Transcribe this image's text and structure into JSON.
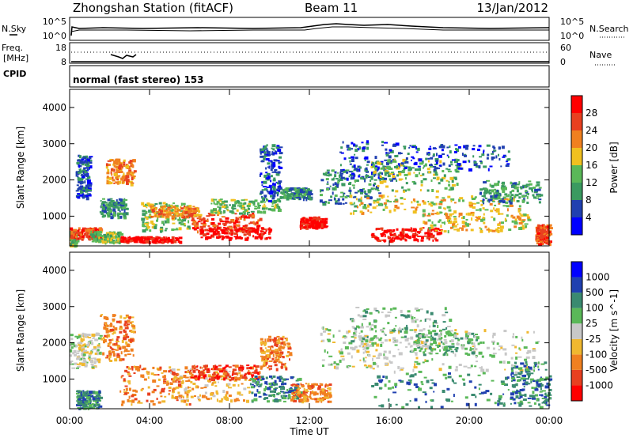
{
  "header": {
    "station": "Zhongshan Station (fitACF)",
    "beam": "Beam 11",
    "date": "13/Jan/2012"
  },
  "strip_panels": {
    "noise": {
      "left_label": "N.Sky",
      "right_label": "N.Search",
      "left_ticks": [
        "10^5",
        "10^0"
      ],
      "right_ticks": [
        "10^5",
        "10^0"
      ]
    },
    "freq": {
      "left_label_line1": "Freq.",
      "left_label_line2": "[MHz]",
      "right_label": "Nave",
      "left_ticks": [
        "18",
        "8"
      ],
      "right_ticks": [
        "60",
        "0"
      ]
    },
    "cpid": {
      "label": "CPID",
      "text": "normal (fast stereo) 153"
    }
  },
  "chart_data": [
    {
      "type": "heatmap",
      "title": "Power",
      "ylabel": "Slant Range [km]",
      "xlabel": "Time UT",
      "x_ticks": [
        "00:00",
        "04:00",
        "08:00",
        "12:00",
        "16:00",
        "20:00",
        "00:00"
      ],
      "xlim": [
        0,
        24
      ],
      "y_ticks": [
        1000,
        2000,
        3000,
        4000
      ],
      "ylim": [
        180,
        4500
      ],
      "colorbar": {
        "label": "Power [dB]",
        "tick_values": [
          4,
          8,
          12,
          16,
          20,
          24,
          28
        ],
        "range": [
          0,
          32
        ],
        "colors": [
          "#0000ff",
          "#2040b0",
          "#3a9a60",
          "#5ab858",
          "#f0c020",
          "#f08020",
          "#e84020",
          "#ff0000"
        ]
      },
      "regions": [
        {
          "t": [
            0.0,
            0.3
          ],
          "r": [
            180,
            600
          ],
          "level": 3
        },
        {
          "t": [
            0.0,
            1.5
          ],
          "r": [
            400,
            700
          ],
          "level": 6
        },
        {
          "t": [
            0.3,
            1.0
          ],
          "r": [
            1500,
            2700
          ],
          "level": 1
        },
        {
          "t": [
            1.5,
            2.8
          ],
          "r": [
            1000,
            1500
          ],
          "level": 2
        },
        {
          "t": [
            1.8,
            3.2
          ],
          "r": [
            1900,
            2600
          ],
          "level": 5
        },
        {
          "t": [
            1.0,
            2.5
          ],
          "r": [
            300,
            600
          ],
          "level": 3
        },
        {
          "t": [
            2.5,
            5.5
          ],
          "r": [
            300,
            450
          ],
          "level": 7
        },
        {
          "t": [
            3.5,
            6.0
          ],
          "r": [
            600,
            1400
          ],
          "level": 3
        },
        {
          "t": [
            4.0,
            6.5
          ],
          "r": [
            1000,
            1300
          ],
          "level": 5
        },
        {
          "t": [
            6.0,
            9.5
          ],
          "r": [
            600,
            1100
          ],
          "level": 6
        },
        {
          "t": [
            6.5,
            10.0
          ],
          "r": [
            400,
            700
          ],
          "level": 7
        },
        {
          "t": [
            7.0,
            10.5
          ],
          "r": [
            1100,
            1500
          ],
          "level": 3
        },
        {
          "t": [
            9.5,
            10.5
          ],
          "r": [
            1400,
            3000
          ],
          "level": 1
        },
        {
          "t": [
            10.5,
            12.0
          ],
          "r": [
            1500,
            1800
          ],
          "level": 2
        },
        {
          "t": [
            11.5,
            12.8
          ],
          "r": [
            700,
            1000
          ],
          "level": 7
        },
        {
          "t": [
            12.5,
            15.5
          ],
          "r": [
            1300,
            2300
          ],
          "level": 2
        },
        {
          "t": [
            13.5,
            16.5
          ],
          "r": [
            2000,
            3100
          ],
          "level": 1
        },
        {
          "t": [
            14.0,
            22.5
          ],
          "r": [
            1100,
            1600
          ],
          "level": 4
        },
        {
          "t": [
            15.0,
            19.5
          ],
          "r": [
            1700,
            2600
          ],
          "level": 3
        },
        {
          "t": [
            16.5,
            22.0
          ],
          "r": [
            2300,
            3000
          ],
          "level": 1
        },
        {
          "t": [
            15.0,
            18.5
          ],
          "r": [
            350,
            700
          ],
          "level": 7
        },
        {
          "t": [
            17.5,
            23.0
          ],
          "r": [
            600,
            1100
          ],
          "level": 4
        },
        {
          "t": [
            20.5,
            23.5
          ],
          "r": [
            1400,
            2000
          ],
          "level": 2
        },
        {
          "t": [
            23.3,
            24.0
          ],
          "r": [
            250,
            800
          ],
          "level": 6
        }
      ]
    },
    {
      "type": "heatmap",
      "title": "Velocity",
      "ylabel": "Slant Range [km]",
      "xlabel": "Time UT",
      "x_ticks": [
        "00:00",
        "04:00",
        "08:00",
        "12:00",
        "16:00",
        "20:00",
        "00:00"
      ],
      "xlim": [
        0,
        24
      ],
      "y_ticks": [
        1000,
        2000,
        3000,
        4000
      ],
      "ylim": [
        180,
        4500
      ],
      "colorbar": {
        "label": "Velocity [m s^-1]",
        "tick_labels": [
          "-1000",
          "-500",
          "-100",
          "-25",
          "25",
          "100",
          "500",
          "1000"
        ],
        "colors": [
          "#ff0000",
          "#e84020",
          "#f08020",
          "#f0b830",
          "#c8c8c8",
          "#5ab858",
          "#3a8a70",
          "#2040b0",
          "#0000ff"
        ]
      },
      "regions": [
        {
          "t": [
            0.0,
            1.5
          ],
          "r": [
            1300,
            2300
          ],
          "level": 4
        },
        {
          "t": [
            0.3,
            1.5
          ],
          "r": [
            200,
            700
          ],
          "level": 6
        },
        {
          "t": [
            1.5,
            3.2
          ],
          "r": [
            1500,
            2800
          ],
          "level": 2
        },
        {
          "t": [
            2.5,
            6.0
          ],
          "r": [
            300,
            1400
          ],
          "level": 2
        },
        {
          "t": [
            5.0,
            9.0
          ],
          "r": [
            400,
            1300
          ],
          "level": 3
        },
        {
          "t": [
            6.0,
            9.5
          ],
          "r": [
            1000,
            1400
          ],
          "level": 1
        },
        {
          "t": [
            9.0,
            11.5
          ],
          "r": [
            400,
            1100
          ],
          "level": 6
        },
        {
          "t": [
            9.5,
            11.0
          ],
          "r": [
            1300,
            2200
          ],
          "level": 2
        },
        {
          "t": [
            11.0,
            13.0
          ],
          "r": [
            400,
            900
          ],
          "level": 2
        },
        {
          "t": [
            12.5,
            16.0
          ],
          "r": [
            1300,
            2500
          ],
          "level": 4
        },
        {
          "t": [
            14.0,
            19.0
          ],
          "r": [
            2000,
            3000
          ],
          "level": 5
        },
        {
          "t": [
            15.0,
            24.0
          ],
          "r": [
            250,
            1200
          ],
          "level": 6
        },
        {
          "t": [
            16.0,
            23.5
          ],
          "r": [
            1200,
            2400
          ],
          "level": 4
        },
        {
          "t": [
            17.0,
            20.5
          ],
          "r": [
            1700,
            2300
          ],
          "level": 5
        },
        {
          "t": [
            22.0,
            24.0
          ],
          "r": [
            300,
            1500
          ],
          "level": 6
        }
      ]
    }
  ]
}
